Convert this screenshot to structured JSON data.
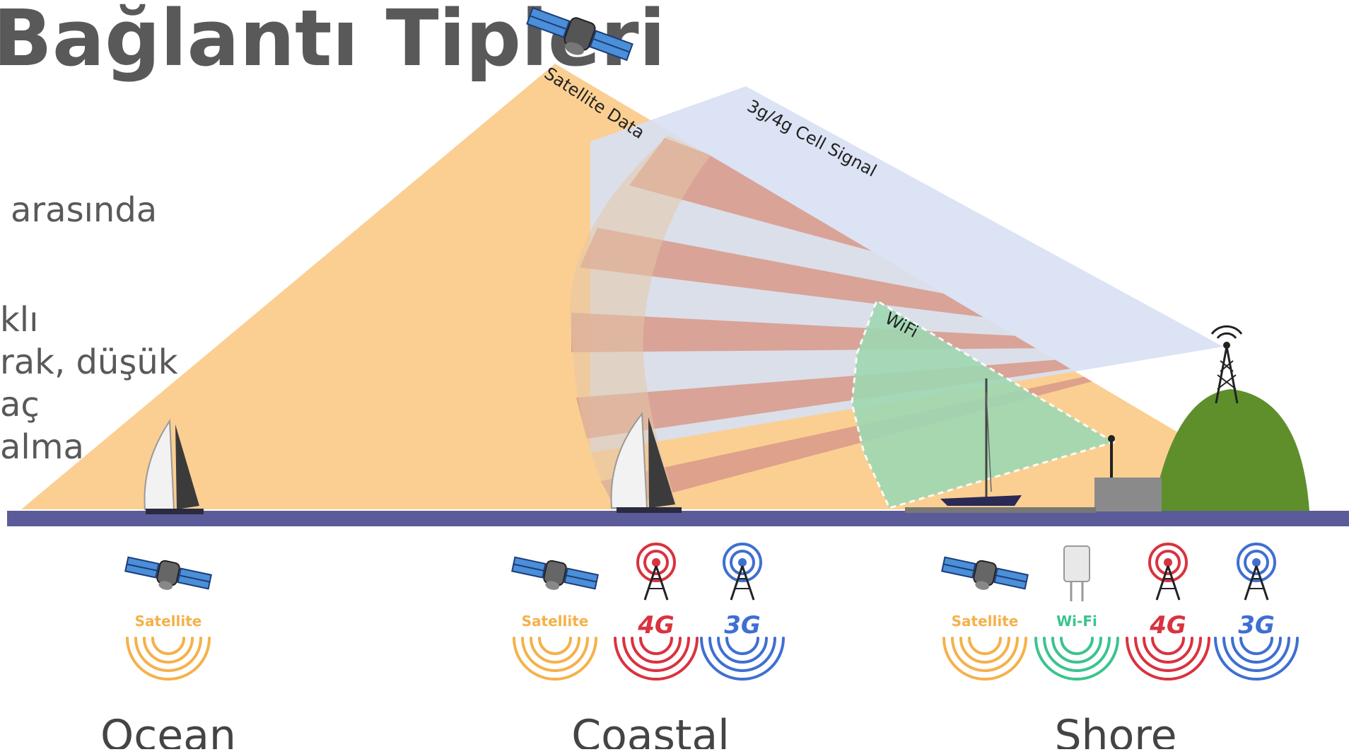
{
  "title": "Bağlantı Tipleri",
  "side_text": [
    "arasında",
    "klı",
    "rak, düşük",
    "aç",
    "alma"
  ],
  "beams": {
    "satellite": "Satellite Data",
    "cell": "3g/4g Cell Signal",
    "wifi": "WiFi"
  },
  "zones": [
    {
      "label": "Ocean",
      "badges": [
        "Satellite"
      ]
    },
    {
      "label": "Coastal",
      "badges": [
        "Satellite",
        "4G",
        "3G"
      ]
    },
    {
      "label": "Shore",
      "badges": [
        "Satellite",
        "Wi-Fi",
        "4G",
        "3G"
      ]
    }
  ],
  "colors": {
    "satellite": "#f5b14a",
    "satellite_beam": "#fbcf92",
    "cell_beam": "#d7e0f3",
    "cell_ray": "#d8998a",
    "wifi": "#9fd8b2",
    "wifi_text": "#3bc48e",
    "g4": "#d9333f",
    "g3": "#3f6fd1",
    "sea": "#5b5b9a",
    "hill": "#5e8f2b",
    "title": "#595959"
  },
  "icons": [
    "satellite-icon",
    "cell-tower-icon",
    "sailboat-icon",
    "wifi-router-icon",
    "signal-waves-icon"
  ]
}
